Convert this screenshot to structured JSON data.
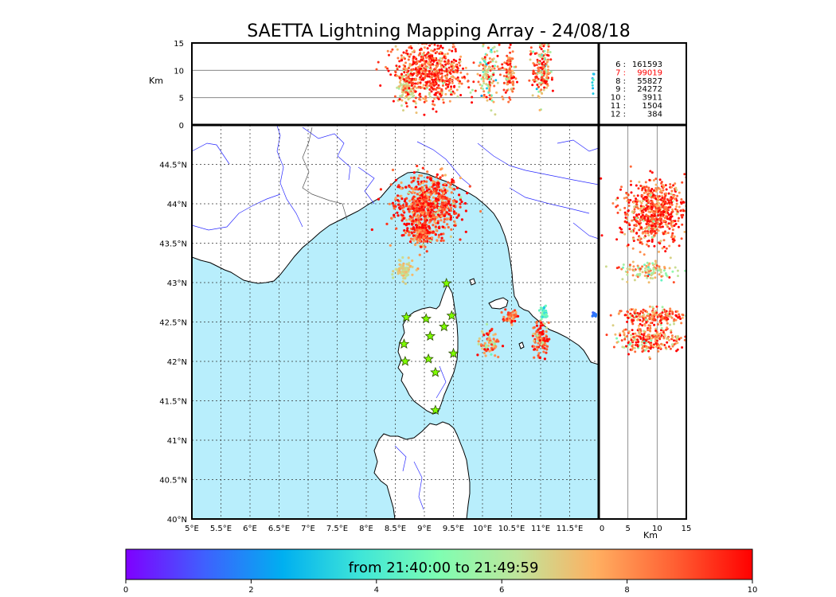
{
  "title": "SAETTA Lightning Mapping Array - 24/08/18",
  "colors": {
    "sea": "#b8eefc",
    "land": "#ffffff",
    "coast": "#000000",
    "river": "#2a2aff",
    "grid": "#333333",
    "highlight_row": "#ff0000",
    "station_fill": "#7fff00",
    "station_edge": "#2e4f00"
  },
  "colorbar": {
    "label": "from 21:40:00 to 21:49:59",
    "min": 0,
    "max": 10,
    "ticks": [
      "0",
      "2",
      "4",
      "6",
      "8",
      "10"
    ],
    "stops": [
      "#7f00ff",
      "#3f60fe",
      "#00aff0",
      "#3fe6d8",
      "#7ffeb2",
      "#bfe69b",
      "#ffaf61",
      "#ff6033",
      "#ff0000"
    ]
  },
  "stats": {
    "rows": [
      {
        "label": "6 :",
        "value": "161593",
        "highlight": false
      },
      {
        "label": "7 :",
        "value": "99019",
        "highlight": true
      },
      {
        "label": "8 :",
        "value": "55827",
        "highlight": false
      },
      {
        "label": "9 :",
        "value": "24272",
        "highlight": false
      },
      {
        "label": "10 :",
        "value": "3911",
        "highlight": false
      },
      {
        "label": "11 :",
        "value": "1504",
        "highlight": false
      },
      {
        "label": "12 :",
        "value": "384",
        "highlight": false
      }
    ]
  },
  "chart_data": [
    {
      "type": "scatter",
      "panel": "plan-view map",
      "xlim": [
        5.0,
        12.0
      ],
      "ylim": [
        40.0,
        45.0
      ],
      "xticks": [
        "5°E",
        "5.5°E",
        "6°E",
        "6.5°E",
        "7°E",
        "7.5°E",
        "8°E",
        "8.5°E",
        "9°E",
        "9.5°E",
        "10°E",
        "10.5°E",
        "11°E",
        "11.5°E"
      ],
      "yticks": [
        "40°N",
        "40.5°N",
        "41°N",
        "41.5°N",
        "42°N",
        "42.5°N",
        "43°N",
        "43.5°N",
        "44°N",
        "44.5°N"
      ],
      "grid": true,
      "stations": [
        {
          "lon": 9.38,
          "lat": 42.99
        },
        {
          "lon": 8.69,
          "lat": 42.56
        },
        {
          "lon": 9.03,
          "lat": 42.54
        },
        {
          "lon": 9.47,
          "lat": 42.58
        },
        {
          "lon": 9.34,
          "lat": 42.44
        },
        {
          "lon": 9.1,
          "lat": 42.32
        },
        {
          "lon": 8.65,
          "lat": 42.22
        },
        {
          "lon": 9.5,
          "lat": 42.1
        },
        {
          "lon": 8.67,
          "lat": 42.0
        },
        {
          "lon": 9.07,
          "lat": 42.03
        },
        {
          "lon": 9.19,
          "lat": 41.86
        },
        {
          "lon": 9.19,
          "lat": 41.38
        }
      ],
      "clusters": [
        {
          "lon": 9.05,
          "lat": 43.98,
          "lon_spread": 0.28,
          "lat_spread": 0.2,
          "count": 700,
          "time_center": 9.0,
          "time_spread": 1.2
        },
        {
          "lon": 8.94,
          "lat": 43.62,
          "lon_spread": 0.07,
          "lat_spread": 0.07,
          "count": 120,
          "time_center": 8.8,
          "time_spread": 1.0
        },
        {
          "lon": 8.66,
          "lat": 43.14,
          "lon_spread": 0.08,
          "lat_spread": 0.06,
          "count": 80,
          "time_center": 6.7,
          "time_spread": 0.5
        },
        {
          "lon": 10.48,
          "lat": 42.57,
          "lon_spread": 0.05,
          "lat_spread": 0.04,
          "count": 50,
          "time_center": 8.6,
          "time_spread": 0.9
        },
        {
          "lon": 10.12,
          "lat": 42.22,
          "lon_spread": 0.08,
          "lat_spread": 0.09,
          "count": 70,
          "time_center": 7.6,
          "time_spread": 1.6
        },
        {
          "lon": 11.0,
          "lat": 42.29,
          "lon_spread": 0.07,
          "lat_spread": 0.1,
          "count": 110,
          "time_center": 8.8,
          "time_spread": 1.2
        },
        {
          "lon": 11.06,
          "lat": 42.62,
          "lon_spread": 0.04,
          "lat_spread": 0.05,
          "count": 40,
          "time_center": 4.5,
          "time_spread": 0.8
        },
        {
          "lon": 11.93,
          "lat": 42.59,
          "lon_spread": 0.015,
          "lat_spread": 0.015,
          "count": 12,
          "time_center": 1.6,
          "time_spread": 0.2
        }
      ]
    },
    {
      "type": "scatter",
      "panel": "longitude-altitude",
      "ylabel": "Km",
      "ylim": [
        0,
        15
      ],
      "yticks": [
        "0",
        "5",
        "10",
        "15"
      ],
      "clusters": [
        {
          "lon": 8.68,
          "alt": 7.0,
          "lon_spread": 0.07,
          "alt_spread": 1.6,
          "count": 90,
          "time_center": 6.7,
          "time_spread": 0.6
        },
        {
          "lon": 9.1,
          "alt": 9.5,
          "lon_spread": 0.3,
          "alt_spread": 2.6,
          "count": 650,
          "time_center": 9.0,
          "time_spread": 1.4
        },
        {
          "lon": 10.1,
          "alt": 9.2,
          "lon_spread": 0.08,
          "alt_spread": 2.6,
          "count": 140,
          "time_center": 7.0,
          "time_spread": 2.0
        },
        {
          "lon": 10.46,
          "alt": 9.5,
          "lon_spread": 0.05,
          "alt_spread": 2.2,
          "count": 110,
          "time_center": 8.2,
          "time_spread": 1.4
        },
        {
          "lon": 11.02,
          "alt": 10.0,
          "lon_spread": 0.08,
          "alt_spread": 2.6,
          "count": 180,
          "time_center": 8.2,
          "time_spread": 2.0
        },
        {
          "lon": 11.9,
          "alt": 8.0,
          "lon_spread": 0.01,
          "alt_spread": 1.0,
          "count": 10,
          "time_center": 3.0,
          "time_spread": 0.8
        }
      ]
    },
    {
      "type": "scatter",
      "panel": "altitude-latitude",
      "xlabel": "Km",
      "xlim": [
        0,
        15
      ],
      "xticks": [
        "0",
        "5",
        "10",
        "15"
      ],
      "clusters": [
        {
          "alt": 9.5,
          "lat": 43.9,
          "alt_spread": 2.7,
          "lat_spread": 0.2,
          "count": 650,
          "time_center": 9.0,
          "time_spread": 1.4
        },
        {
          "alt": 8.5,
          "lat": 43.15,
          "alt_spread": 2.4,
          "lat_spread": 0.06,
          "count": 110,
          "time_center": 6.8,
          "time_spread": 1.4
        },
        {
          "alt": 9.0,
          "lat": 42.57,
          "alt_spread": 3.0,
          "lat_spread": 0.05,
          "count": 200,
          "time_center": 8.6,
          "time_spread": 1.4
        },
        {
          "alt": 8.5,
          "lat": 42.28,
          "alt_spread": 3.0,
          "lat_spread": 0.08,
          "count": 260,
          "time_center": 8.4,
          "time_spread": 1.6
        }
      ]
    }
  ]
}
